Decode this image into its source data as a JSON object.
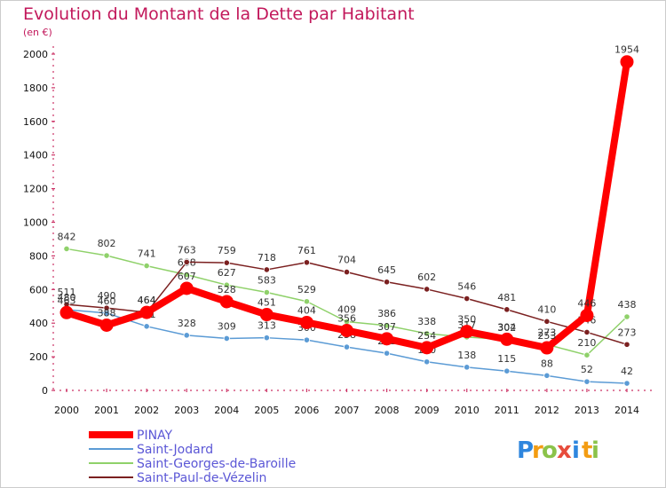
{
  "chart_data": {
    "type": "line",
    "title": "Evolution du Montant de la Dette par Habitant",
    "subtitle": "(en €)",
    "xlabel": "",
    "ylabel": "",
    "x": [
      "2000",
      "2001",
      "2002",
      "2003",
      "2004",
      "2005",
      "2006",
      "2007",
      "2008",
      "2009",
      "2010",
      "2011",
      "2012",
      "2013",
      "2014"
    ],
    "ylim": [
      0,
      2000
    ],
    "yticks": [
      0,
      200,
      400,
      600,
      800,
      1000,
      1200,
      1400,
      1600,
      1800,
      2000
    ],
    "grid": false,
    "legend_position": "bottom-left",
    "series": [
      {
        "name": "PINAY",
        "color": "#ff0000",
        "highlight": true,
        "values": [
          463,
          388,
          464,
          607,
          528,
          451,
          404,
          356,
          307,
          254,
          350,
          304,
          253,
          446,
          1954
        ]
      },
      {
        "name": "Saint-Jodard",
        "color": "#5b9bd5",
        "highlight": false,
        "values": [
          480,
          460,
          381,
          328,
          309,
          313,
          300,
          258,
          221,
          170,
          138,
          115,
          88,
          52,
          42
        ]
      },
      {
        "name": "Saint-Georges-de-Baroille",
        "color": "#8fd16a",
        "highlight": false,
        "values": [
          842,
          802,
          741,
          688,
          627,
          583,
          529,
          409,
          386,
          338,
          317,
          302,
          273,
          210,
          438
        ]
      },
      {
        "name": "Saint-Paul-de-Vézelin",
        "color": "#7b2020",
        "highlight": false,
        "values": [
          511,
          490,
          464,
          763,
          759,
          718,
          761,
          704,
          645,
          602,
          546,
          481,
          410,
          346,
          273
        ]
      }
    ]
  },
  "logo": {
    "text": "Proxiti",
    "letters": [
      "P",
      "r",
      "o",
      "x",
      "i",
      "t",
      "i"
    ]
  }
}
